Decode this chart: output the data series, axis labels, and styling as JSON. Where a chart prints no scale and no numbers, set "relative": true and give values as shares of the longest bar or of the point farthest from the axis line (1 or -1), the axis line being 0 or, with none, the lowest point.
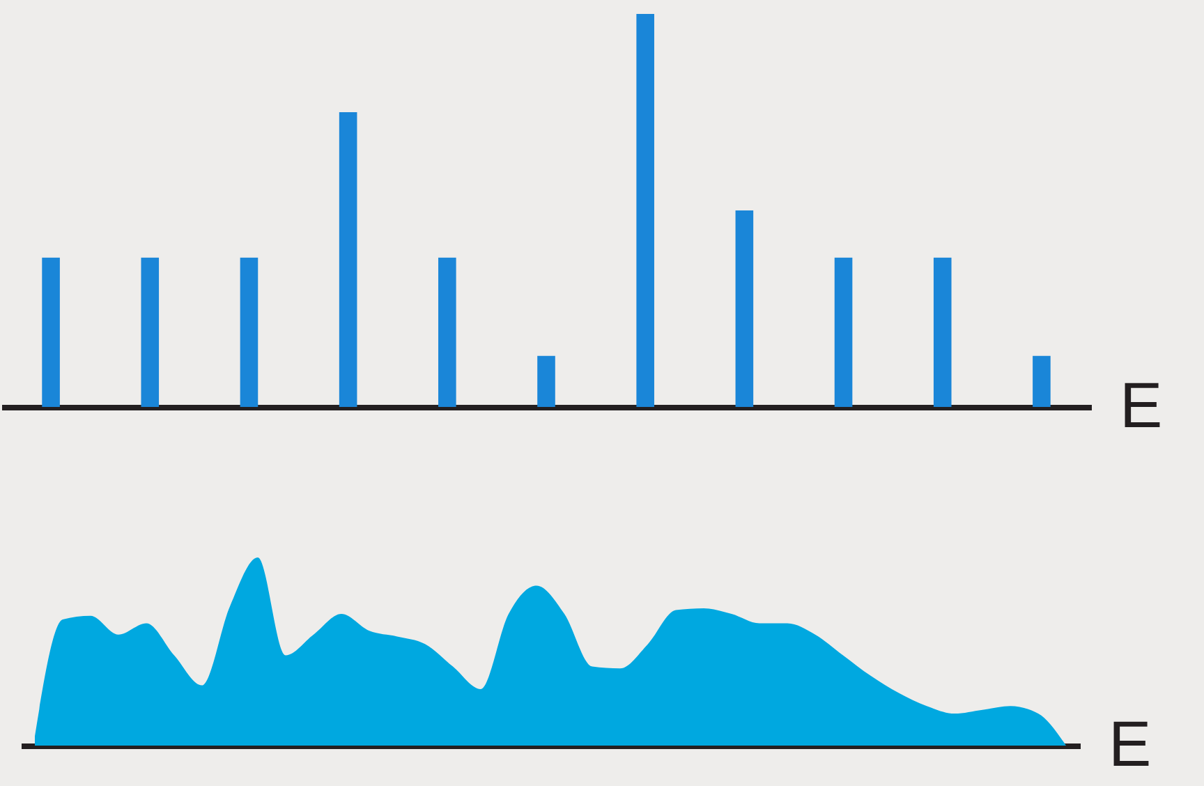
{
  "chart_data": [
    {
      "type": "bar",
      "xlabel": "E",
      "relative": true,
      "tick_labels": false,
      "color": "#1a86d8",
      "categories": [
        null,
        null,
        null,
        null,
        null,
        null,
        null,
        null,
        null,
        null,
        null
      ],
      "values": [
        0.38,
        0.38,
        0.38,
        0.75,
        0.38,
        0.13,
        1,
        0.5,
        0.38,
        0.38,
        0.13
      ]
    },
    {
      "type": "area",
      "xlabel": "E",
      "relative": true,
      "tick_labels": false,
      "color": "#00a8e0",
      "categories": [
        null,
        null,
        null,
        null,
        null,
        null,
        null,
        null,
        null,
        null,
        null,
        null,
        null,
        null,
        null,
        null,
        null,
        null,
        null,
        null,
        null,
        null,
        null,
        null,
        null,
        null,
        null,
        null,
        null,
        null,
        null,
        null,
        null,
        null,
        null,
        null,
        null,
        null
      ],
      "values": [
        0.05,
        0.67,
        0.69,
        0.59,
        0.65,
        0.48,
        0.32,
        0.74,
        1,
        0.48,
        0.59,
        0.7,
        0.61,
        0.58,
        0.54,
        0.42,
        0.3,
        0.7,
        0.85,
        0.7,
        0.42,
        0.41,
        0.54,
        0.72,
        0.73,
        0.7,
        0.65,
        0.65,
        0.59,
        0.48,
        0.37,
        0.28,
        0.21,
        0.17,
        0.19,
        0.21,
        0.17,
        0
      ]
    }
  ]
}
